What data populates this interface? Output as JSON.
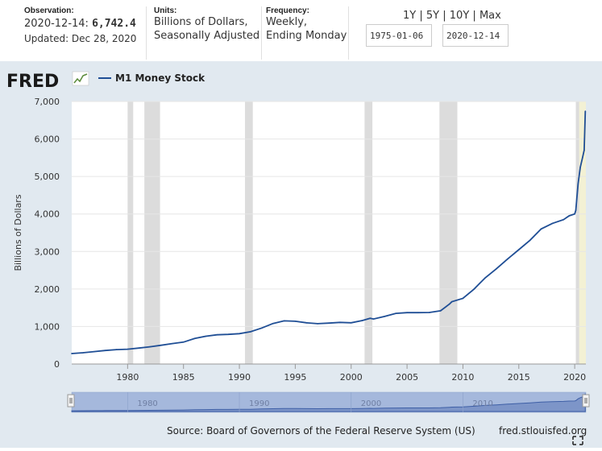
{
  "header": {
    "observation_label": "Observation:",
    "observation_date": "2020-12-14:",
    "observation_value": "6,742.4",
    "updated": "Updated: Dec 28, 2020",
    "units_label": "Units:",
    "units_line1": "Billions of Dollars,",
    "units_line2": "Seasonally Adjusted",
    "frequency_label": "Frequency:",
    "frequency_line1": "Weekly,",
    "frequency_line2": "Ending Monday"
  },
  "range": {
    "buttons": [
      "1Y",
      "5Y",
      "10Y",
      "Max"
    ],
    "separator": "|",
    "start_date": "1975-01-06",
    "end_date": "2020-12-14"
  },
  "logo": {
    "text": "FRED"
  },
  "colors": {
    "series": "#1f4e95",
    "plot_bg": "#ffffff",
    "outer_bg": "#e1e9f0",
    "recession": "#dcdcdc",
    "highlight": "#f3f1d4",
    "navigator": "#a5b8dc",
    "navigator_line": "#5a77b5"
  },
  "chart_data": {
    "type": "line",
    "title": "M1 Money Stock",
    "ylabel": "Billions of Dollars",
    "xlabel": "",
    "ylim": [
      0,
      7000
    ],
    "xlim": [
      1975.0,
      2021.0
    ],
    "yticks": [
      0,
      1000,
      2000,
      3000,
      4000,
      5000,
      6000,
      7000
    ],
    "ytick_labels": [
      "0",
      "1,000",
      "2,000",
      "3,000",
      "4,000",
      "5,000",
      "6,000",
      "7,000"
    ],
    "xticks": [
      1980,
      1985,
      1990,
      1995,
      2000,
      2005,
      2010,
      2015,
      2020
    ],
    "grid": true,
    "legend_position": "top-left",
    "recessions": [
      [
        1980.0,
        1980.5
      ],
      [
        1981.5,
        1982.9
      ],
      [
        1990.5,
        1991.2
      ],
      [
        2001.2,
        2001.9
      ],
      [
        2007.9,
        2009.5
      ],
      [
        2020.1,
        2020.4
      ]
    ],
    "highlight": [
      2020.2,
      2021.0
    ],
    "series": [
      {
        "name": "M1 Money Stock",
        "x": [
          1975.0,
          1976.0,
          1977.0,
          1978.0,
          1979.0,
          1980.0,
          1981.0,
          1982.0,
          1983.0,
          1984.0,
          1985.0,
          1986.0,
          1987.0,
          1988.0,
          1989.0,
          1990.0,
          1991.0,
          1992.0,
          1993.0,
          1994.0,
          1995.0,
          1996.0,
          1997.0,
          1998.0,
          1999.0,
          2000.0,
          2001.0,
          2001.7,
          2002.0,
          2003.0,
          2004.0,
          2005.0,
          2006.0,
          2007.0,
          2008.0,
          2008.8,
          2009.0,
          2010.0,
          2011.0,
          2011.5,
          2012.0,
          2013.0,
          2014.0,
          2015.0,
          2016.0,
          2017.0,
          2018.0,
          2019.0,
          2019.5,
          2020.0,
          2020.1,
          2020.3,
          2020.5,
          2020.7,
          2020.85,
          2020.95
        ],
        "values": [
          280,
          300,
          330,
          360,
          385,
          395,
          425,
          460,
          500,
          545,
          585,
          680,
          740,
          780,
          790,
          810,
          860,
          960,
          1080,
          1150,
          1140,
          1100,
          1075,
          1090,
          1110,
          1100,
          1160,
          1220,
          1200,
          1270,
          1350,
          1370,
          1370,
          1375,
          1420,
          1600,
          1660,
          1750,
          2000,
          2150,
          2300,
          2540,
          2800,
          3050,
          3300,
          3600,
          3750,
          3850,
          3950,
          4000,
          4100,
          4800,
          5250,
          5500,
          5700,
          6742.4
        ]
      }
    ],
    "navigator_ticks": [
      1980,
      1990,
      2000,
      2010
    ],
    "source": "Source: Board of Governors of the Federal Reserve System (US)",
    "site": "fred.stlouisfed.org"
  }
}
